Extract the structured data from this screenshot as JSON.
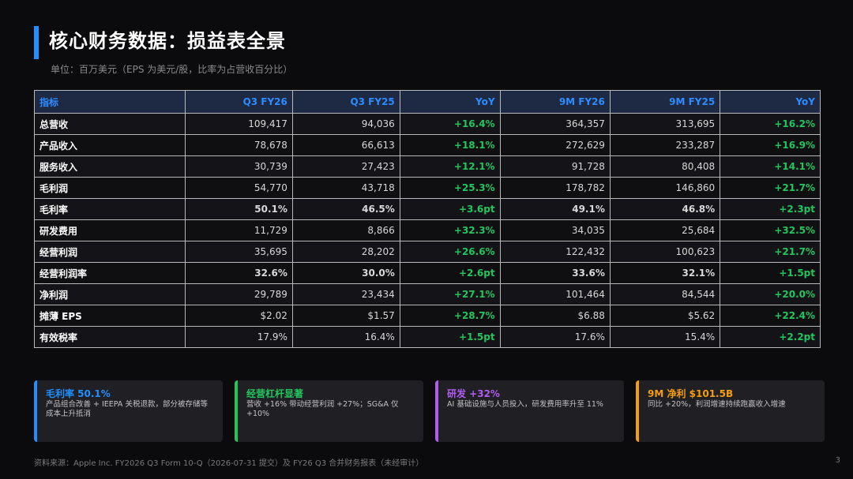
{
  "header": {
    "title": "核心财务数据：损益表全景",
    "subtitle": "单位：百万美元（EPS 为美元/股，比率为占营收百分比）"
  },
  "table": {
    "columns": [
      "指标",
      "Q3 FY26",
      "Q3 FY25",
      "YoY",
      "9M FY26",
      "9M FY25",
      "YoY"
    ],
    "rows": [
      {
        "name": "总营收",
        "q3fy26": "109,417",
        "q3fy25": "94,036",
        "yoy1": "+16.4%",
        "m9fy26": "364,357",
        "m9fy25": "313,695",
        "yoy2": "+16.2%"
      },
      {
        "name": "产品收入",
        "q3fy26": "78,678",
        "q3fy25": "66,613",
        "yoy1": "+18.1%",
        "m9fy26": "272,629",
        "m9fy25": "233,287",
        "yoy2": "+16.9%"
      },
      {
        "name": "服务收入",
        "q3fy26": "30,739",
        "q3fy25": "27,423",
        "yoy1": "+12.1%",
        "m9fy26": "91,728",
        "m9fy25": "80,408",
        "yoy2": "+14.1%"
      },
      {
        "name": "毛利润",
        "q3fy26": "54,770",
        "q3fy25": "43,718",
        "yoy1": "+25.3%",
        "m9fy26": "178,782",
        "m9fy25": "146,860",
        "yoy2": "+21.7%"
      },
      {
        "name": "毛利率",
        "q3fy26": "50.1%",
        "q3fy25": "46.5%",
        "yoy1": "+3.6pt",
        "m9fy26": "49.1%",
        "m9fy25": "46.8%",
        "yoy2": "+2.3pt"
      },
      {
        "name": "研发费用",
        "q3fy26": "11,729",
        "q3fy25": "8,866",
        "yoy1": "+32.3%",
        "m9fy26": "34,035",
        "m9fy25": "25,684",
        "yoy2": "+32.5%"
      },
      {
        "name": "经营利润",
        "q3fy26": "35,695",
        "q3fy25": "28,202",
        "yoy1": "+26.6%",
        "m9fy26": "122,432",
        "m9fy25": "100,623",
        "yoy2": "+21.7%"
      },
      {
        "name": "经营利润率",
        "q3fy26": "32.6%",
        "q3fy25": "30.0%",
        "yoy1": "+2.6pt",
        "m9fy26": "33.6%",
        "m9fy25": "32.1%",
        "yoy2": "+1.5pt"
      },
      {
        "name": "净利润",
        "q3fy26": "29,789",
        "q3fy25": "23,434",
        "yoy1": "+27.1%",
        "m9fy26": "101,464",
        "m9fy25": "84,544",
        "yoy2": "+20.0%"
      },
      {
        "name": "摊薄 EPS",
        "q3fy26": "$2.02",
        "q3fy25": "$1.57",
        "yoy1": "+28.7%",
        "m9fy26": "$6.88",
        "m9fy25": "$5.62",
        "yoy2": "+22.4%"
      },
      {
        "name": "有效税率",
        "q3fy26": "17.9%",
        "q3fy25": "16.4%",
        "yoy1": "+1.5pt",
        "m9fy26": "17.6%",
        "m9fy25": "15.4%",
        "yoy2": "+2.2pt"
      }
    ]
  },
  "cards": [
    {
      "title": "毛利率 50.1%",
      "body": "产品组合改善 + IEEPA 关税退款，部分被存储等成本上升抵消",
      "color": "#1e90ff"
    },
    {
      "title": "经营杠杆显著",
      "body": "营收 +16% 带动经营利润 +27%；SG&A 仅 +10%",
      "color": "#22c55e"
    },
    {
      "title": "研发 +32%",
      "body": "AI 基础设施与人员投入，研发费用率升至 11%",
      "color": "#b05cf0"
    },
    {
      "title": "9M 净利 $101.5B",
      "body": "同比 +20%，利润增速持续跑赢收入增速",
      "color": "#f59e0b"
    }
  ],
  "footer": {
    "source": "资料来源：Apple Inc. FY2026 Q3 Form 10-Q（2026-07-31 提交）及 FY26 Q3 合并财务报表（未经审计）",
    "page": "3"
  },
  "colors": {
    "accent": "#1e90ff",
    "positive": "#22c55e",
    "header_text": "#2d8cff"
  }
}
